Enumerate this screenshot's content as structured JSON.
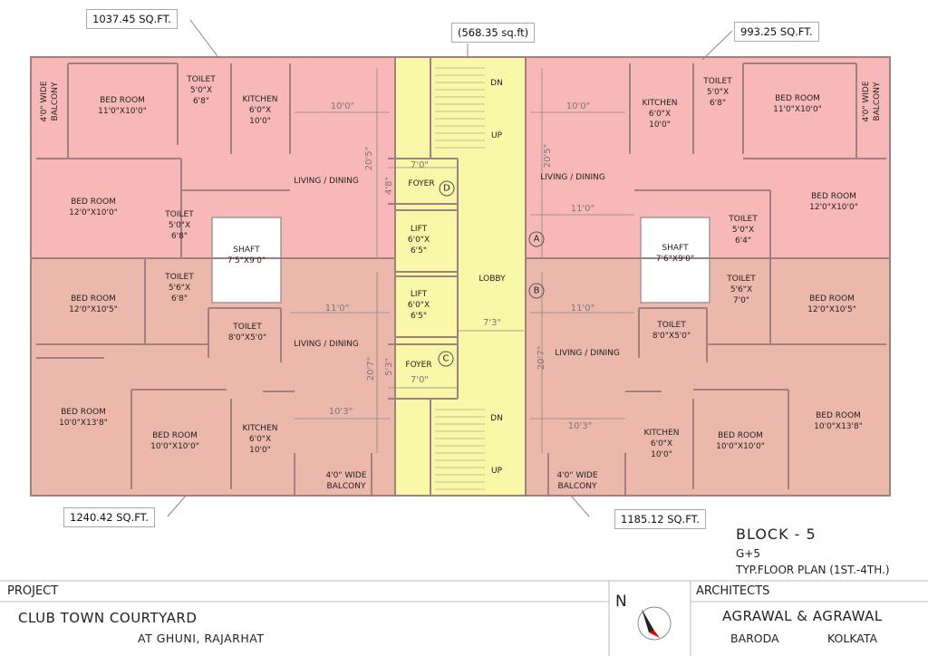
{
  "areas": {
    "top_left": "1037.45 SQ.FT.",
    "top_center": "(568.35 sq.ft)",
    "top_right": "993.25 SQ.FT.",
    "bottom_left": "1240.42 SQ.FT.",
    "bottom_right": "1185.12 SQ.FT."
  },
  "rooms": {
    "tl_balcony": "4'0\" WIDE\nBALCONY",
    "tl_bed1": "BED ROOM\n11'0\"X10'0\"",
    "tl_toilet1": "TOILET\n5'0\"X\n6'8\"",
    "tl_kitchen": "KITCHEN\n6'0\"X\n10'0\"",
    "tl_living": "LIVING / DINING",
    "tl_bed2": "BED ROOM\n12'0\"X10'0\"",
    "tl_toilet2": "TOILET\n5'0\"X\n6'8\"",
    "shaft_left": "SHAFT\n7'5\"X9'0\"",
    "bl_bed1": "BED ROOM\n12'0\"X10'5\"",
    "bl_toilet1": "TOILET\n5'6\"X\n6'8\"",
    "bl_toilet2": "TOILET\n8'0\"X5'0\"",
    "bl_living": "LIVING / DINING",
    "bl_bed2": "BED ROOM\n10'0\"X13'8\"",
    "bl_bed3": "BED ROOM\n10'0\"X10'0\"",
    "bl_kitchen": "KITCHEN\n6'0\"X\n10'0\"",
    "bl_balcony": "4'0\" WIDE\nBALCONY",
    "foyer_top": "FOYER",
    "foyer_bottom": "FOYER",
    "lift1": "LIFT\n6'0\"X\n6'5\"",
    "lift2": "LIFT\n6'0\"X\n6'5\"",
    "lobby": "LOBBY",
    "stair_top_dn": "DN",
    "stair_top_up": "UP",
    "stair_bot_dn": "DN",
    "stair_bot_up": "UP",
    "tr_kitchen": "KITCHEN\n6'0\"X\n10'0\"",
    "tr_toilet1": "TOILET\n5'0\"X\n6'8\"",
    "tr_bed1": "BED ROOM\n11'0\"X10'0\"",
    "tr_balcony": "4'0\" WIDE\nBALCONY",
    "tr_living": "LIVING / DINING",
    "tr_bed2": "BED ROOM\n12'0\"X10'0\"",
    "tr_toilet2": "TOILET\n5'0\"X\n6'4\"",
    "shaft_right": "SHAFT\n7'6\"X9'0\"",
    "br_toilet1": "TOILET\n5'6\"X\n7'0\"",
    "br_bed1": "BED ROOM\n12'0\"X10'5\"",
    "br_toilet2": "TOILET\n8'0\"X5'0\"",
    "br_living": "LIVING / DINING",
    "br_kitchen": "KITCHEN\n6'0\"X\n10'0\"",
    "br_bed2": "BED ROOM\n10'0\"X10'0\"",
    "br_bed3": "BED ROOM\n10'0\"X13'8\"",
    "br_balcony": "4'0\" WIDE\nBALCONY"
  },
  "dimensions": {
    "tl_h": "10'0\"",
    "tl_v": "20'5\"",
    "foyer_top_w": "7'0\"",
    "foyer_top_h": "4'8\"",
    "bl_h": "11'0\"",
    "bl_v": "20'7\"",
    "foyer_bot_h": "5'3\"",
    "foyer_bot_w": "7'0\"",
    "bl_h2": "10'3\"",
    "lobby_w": "7'3\"",
    "tr_h": "10'0\"",
    "tr_v": "20'5\"",
    "tr_h2": "11'0\"",
    "br_h": "11'0\"",
    "br_v": "20'7\"",
    "br_h2": "10'3\""
  },
  "markers": [
    "A",
    "B",
    "C",
    "D"
  ],
  "block": {
    "name": "BLOCK - 5",
    "floors": "G+5",
    "plan": "TYP.FLOOR PLAN (1ST.-4TH.)"
  },
  "title_block": {
    "project_label": "PROJECT",
    "project_name": "CLUB TOWN COURTYARD",
    "location": "AT GHUNI, RAJARHAT",
    "north": "N",
    "architects_label": "ARCHITECTS",
    "architects_name": "AGRAWAL & AGRAWAL",
    "city1": "BARODA",
    "city2": "KOLKATA"
  },
  "colors": {
    "flat_top": "#f8b8b8",
    "flat_bottom": "#ecb8ac",
    "core": "#f8f8a8",
    "wall": "#999999"
  },
  "icons": [
    "north-arrow-icon"
  ]
}
